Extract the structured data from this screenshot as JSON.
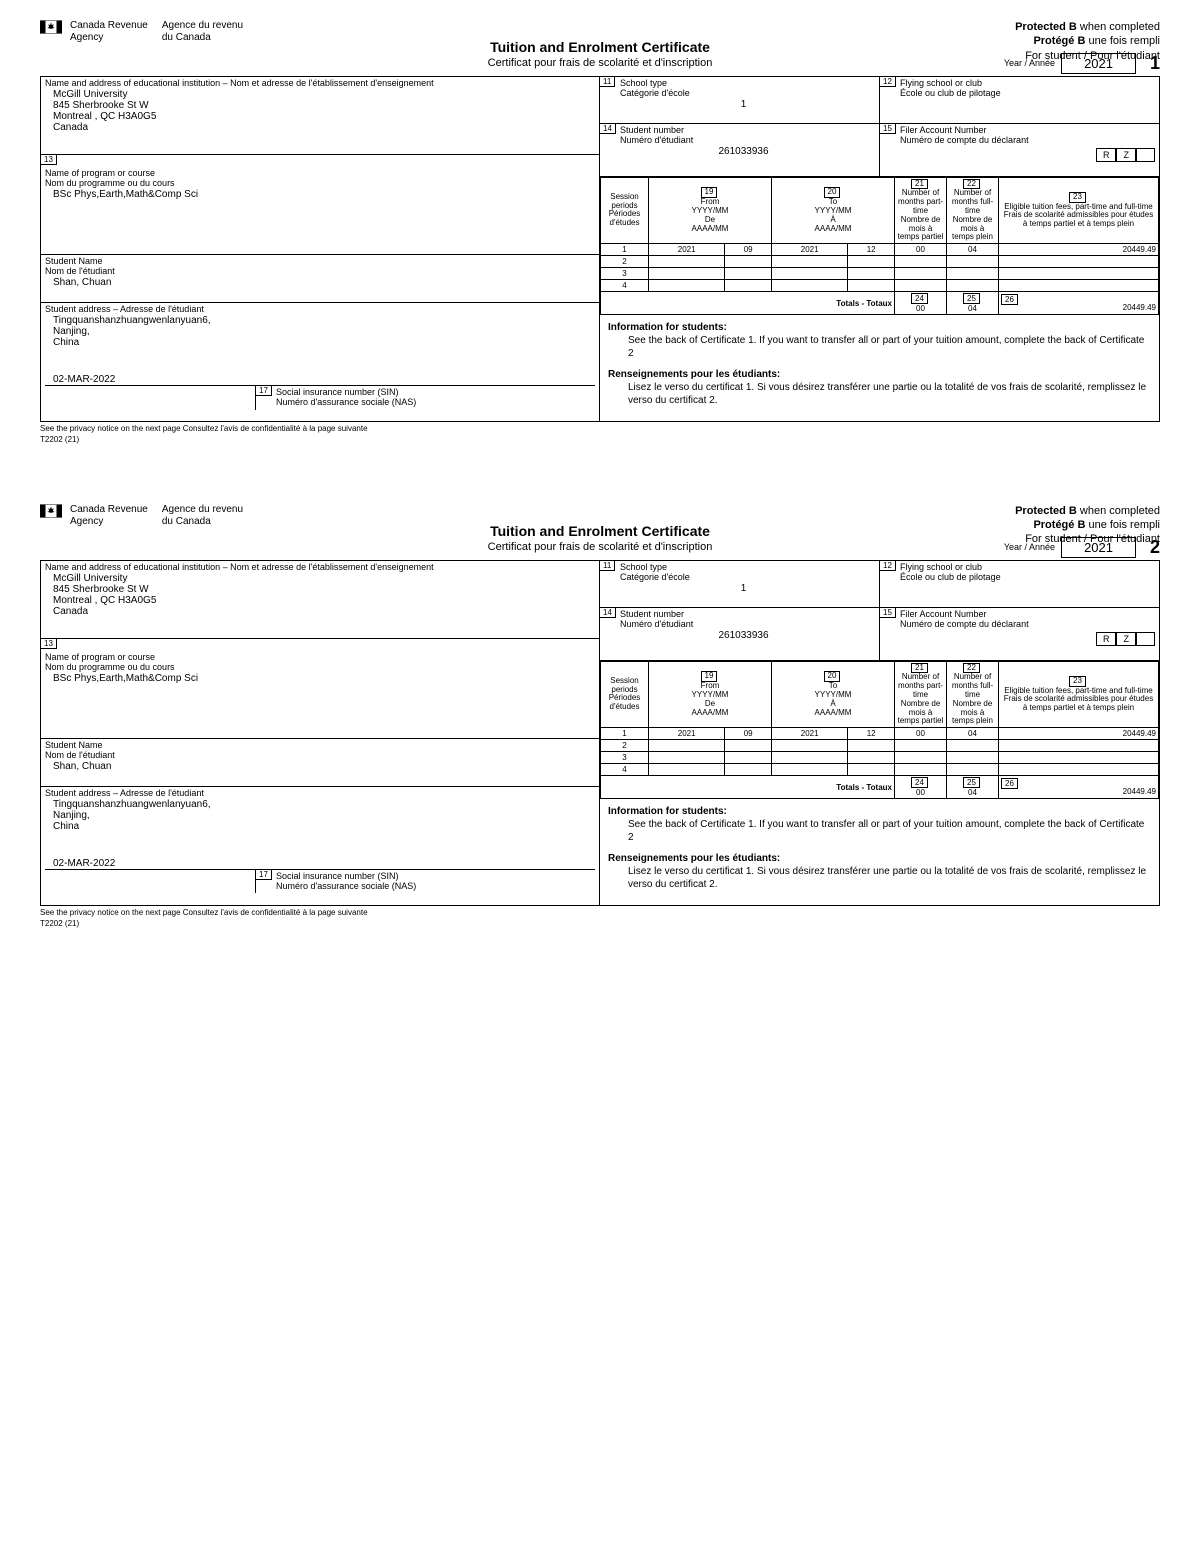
{
  "agency": {
    "en1": "Canada Revenue",
    "en2": "Agency",
    "fr1": "Agence du revenu",
    "fr2": "du Canada"
  },
  "protected": {
    "l1a": "Protected B",
    "l1b": " when completed",
    "l2a": "Protégé B",
    "l2b": " une fois rempli",
    "l3": "For student / Pour l'étudiant"
  },
  "title": {
    "main": "Tuition and Enrolment Certificate",
    "sub": "Certificat pour frais de scolarité et d'inscription"
  },
  "year": {
    "label": "Year / Année",
    "value": "2021"
  },
  "labels": {
    "inst": "Name and address of educational institution – Nom et adresse de l'établissement d'enseignement",
    "schoolType": "School type\nCatégorie d'école",
    "flying": "Flying school or club\nÉcole ou club de pilotage",
    "studentNum": "Student number\nNuméro d'étudiant",
    "filer": "Filer Account Number\nNuméro de compte du déclarant",
    "prog": "Name of program or course\nNom du programme ou du cours",
    "sessionPeriods": "Session periods\nPériodes d'études",
    "from": "From\nYYYY/MM\nDe\nAAAA/MM",
    "to": "To\nYYYY/MM\nÀ\nAAAA/MM",
    "partMonths": "Number of months part-time\nNombre de mois à temps partiel",
    "fullMonths": "Number of months full-time\nNombre de mois à temps plein",
    "eligible": "Eligible tuition fees, part-time and full-time\nFrais de scolarité admissibles pour études à temps partiel et à temps plein",
    "studentName": "Student Name\nNom de l'étudiant",
    "studentAddr": "Student address – Adresse de l'étudiant",
    "sin": "Social insurance number (SIN)\nNuméro d'assurance sociale (NAS)",
    "totals": "Totals - Totaux",
    "infoEnHd": "Information for students:",
    "infoEn": "See the back of Certificate 1. If you want to transfer all or part of your tuition amount, complete the back of Certificate 2",
    "infoFrHd": "Renseignements pour les étudiants:",
    "infoFr": "Lisez le verso du certificat 1. Si vous désirez transférer une partie ou la totalité de vos frais de scolarité, remplissez le verso du certificat 2."
  },
  "boxNums": {
    "schoolType": "11",
    "flying": "12",
    "prog": "13",
    "studentNum": "14",
    "filer": "15",
    "sin": "17",
    "from": "19",
    "to": "20",
    "part": "21",
    "full": "22",
    "fees": "23",
    "totPart": "24",
    "totFull": "25",
    "totFees": "26"
  },
  "inst": {
    "name": "McGill University",
    "addr1": "845 Sherbrooke St W",
    "addr2": "Montreal ,   QC    H3A0G5",
    "country": "Canada"
  },
  "schoolTypeVal": "1",
  "studentNumVal": "261033936",
  "program": "BSc Phys,Earth,Math&Comp Sci",
  "studentName": "Shan, Chuan",
  "studentAddr": {
    "l1": "Tingquanshanzhuangwenlanyuan6,",
    "l2": "Nanjing,",
    "l3": "China",
    "date": "02-MAR-2022"
  },
  "sessions": {
    "rows": [
      {
        "n": "1",
        "fy": "2021",
        "fm": "09",
        "ty": "2021",
        "tm": "12",
        "part": "00",
        "full": "04",
        "fees": "20449.49"
      },
      {
        "n": "2",
        "fy": "",
        "fm": "",
        "ty": "",
        "tm": "",
        "part": "",
        "full": "",
        "fees": ""
      },
      {
        "n": "3",
        "fy": "",
        "fm": "",
        "ty": "",
        "tm": "",
        "part": "",
        "full": "",
        "fees": ""
      },
      {
        "n": "4",
        "fy": "",
        "fm": "",
        "ty": "",
        "tm": "",
        "part": "",
        "full": "",
        "fees": ""
      }
    ],
    "totals": {
      "part": "00",
      "full": "04",
      "fees": "20449.49"
    }
  },
  "rz": {
    "r": "R",
    "z": "Z"
  },
  "footer": {
    "l1": "See the privacy notice on the next page   Consultez l'avis de confidentialité à la page suivante",
    "l2": "T2202 (21)"
  },
  "certNums": [
    "1",
    "2"
  ]
}
